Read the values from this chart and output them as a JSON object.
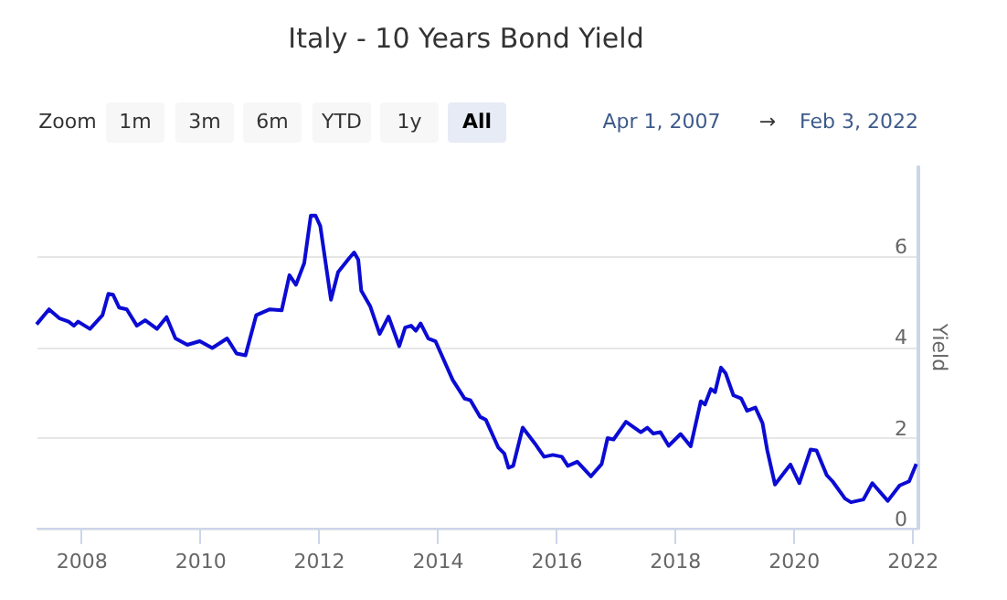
{
  "chart_data": {
    "type": "line",
    "title": "Italy - 10 Years Bond Yield",
    "ylabel": "Yield",
    "annotations": [
      "Zoom",
      "1m",
      "3m",
      "6m",
      "YTD",
      "1y",
      "All",
      "Apr 1, 2007",
      "→",
      "Feb 3, 2022"
    ],
    "x": [
      2007.25,
      2007.46,
      2007.64,
      2007.79,
      2007.88,
      2007.95,
      2008.15,
      2008.36,
      2008.46,
      2008.54,
      2008.64,
      2008.77,
      2008.94,
      2009.08,
      2009.28,
      2009.44,
      2009.59,
      2009.79,
      2010.0,
      2010.21,
      2010.46,
      2010.62,
      2010.77,
      2010.95,
      2011.18,
      2011.38,
      2011.51,
      2011.62,
      2011.76,
      2011.87,
      2011.95,
      2012.03,
      2012.21,
      2012.33,
      2012.52,
      2012.6,
      2012.67,
      2012.72,
      2012.87,
      2013.03,
      2013.18,
      2013.36,
      2013.46,
      2013.56,
      2013.64,
      2013.72,
      2013.85,
      2013.97,
      2014.26,
      2014.46,
      2014.56,
      2014.72,
      2014.82,
      2015.03,
      2015.13,
      2015.2,
      2015.28,
      2015.44,
      2015.64,
      2015.8,
      2015.95,
      2016.1,
      2016.2,
      2016.36,
      2016.59,
      2016.77,
      2016.87,
      2016.97,
      2017.18,
      2017.43,
      2017.54,
      2017.64,
      2017.76,
      2017.9,
      2018.1,
      2018.27,
      2018.44,
      2018.51,
      2018.61,
      2018.68,
      2018.78,
      2018.86,
      2018.99,
      2019.12,
      2019.22,
      2019.36,
      2019.48,
      2019.56,
      2019.69,
      2019.95,
      2020.1,
      2020.29,
      2020.39,
      2020.56,
      2020.66,
      2020.87,
      2020.97,
      2021.18,
      2021.33,
      2021.59,
      2021.79,
      2021.95,
      2022.07
    ],
    "series": [
      {
        "color": "#0b0bd4",
        "values": [
          4.49,
          4.82,
          4.62,
          4.55,
          4.46,
          4.55,
          4.39,
          4.69,
          5.16,
          5.14,
          4.86,
          4.82,
          4.46,
          4.58,
          4.39,
          4.65,
          4.18,
          4.04,
          4.12,
          3.97,
          4.18,
          3.85,
          3.81,
          4.69,
          4.82,
          4.8,
          5.57,
          5.36,
          5.84,
          6.88,
          6.88,
          6.65,
          5.03,
          5.64,
          5.95,
          6.07,
          5.91,
          5.23,
          4.89,
          4.28,
          4.66,
          4.01,
          4.42,
          4.46,
          4.35,
          4.51,
          4.18,
          4.12,
          3.27,
          2.86,
          2.82,
          2.46,
          2.39,
          1.78,
          1.65,
          1.34,
          1.38,
          2.22,
          1.88,
          1.58,
          1.62,
          1.58,
          1.38,
          1.47,
          1.15,
          1.42,
          1.99,
          1.96,
          2.35,
          2.12,
          2.22,
          2.09,
          2.12,
          1.82,
          2.08,
          1.81,
          2.8,
          2.73,
          3.07,
          3.0,
          3.54,
          3.41,
          2.93,
          2.86,
          2.59,
          2.66,
          2.32,
          1.72,
          0.97,
          1.41,
          1.0,
          1.74,
          1.72,
          1.18,
          1.04,
          0.66,
          0.58,
          0.64,
          1.0,
          0.61,
          0.95,
          1.04,
          1.42
        ]
      }
    ],
    "xlim": [
      2007.25,
      2022.09
    ],
    "xticks": [
      2008,
      2010,
      2012,
      2014,
      2016,
      2018,
      2020,
      2022
    ],
    "ylim": [
      0,
      8
    ],
    "yticks": [
      0,
      2,
      4,
      6
    ],
    "grid": "y",
    "line_style": "solid",
    "marker": "none"
  }
}
